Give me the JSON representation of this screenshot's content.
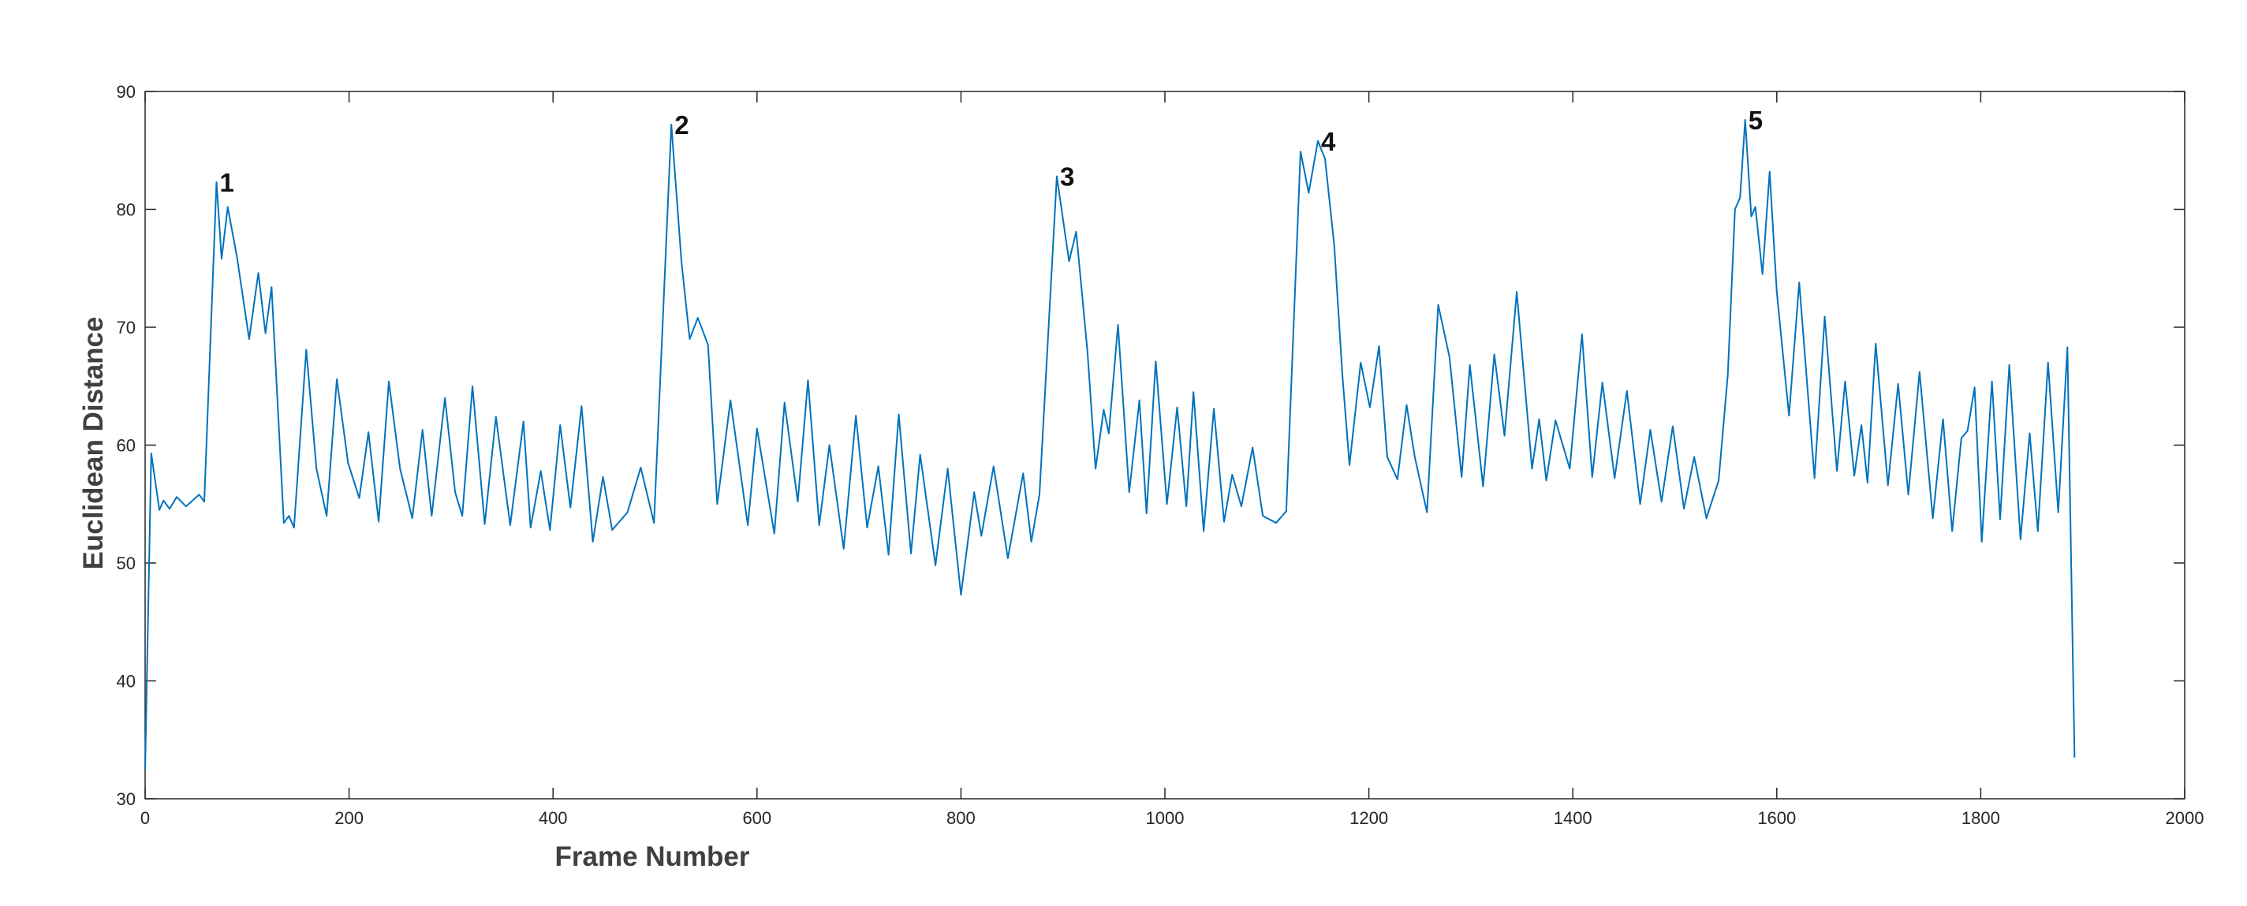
{
  "chart_data": {
    "type": "line",
    "xlabel": "Frame Number",
    "ylabel": "Euclidean Distance",
    "color": "#0072bd",
    "xlim": [
      0,
      2000
    ],
    "xticks": [
      0,
      200,
      400,
      600,
      800,
      1000,
      1200,
      1400,
      1600,
      1800,
      2000
    ],
    "ylim": [
      30,
      90
    ],
    "yticks": [
      30,
      40,
      50,
      60,
      70,
      80,
      90
    ],
    "grid": false,
    "x": [
      0,
      6,
      14,
      18,
      24,
      31,
      40,
      53,
      58,
      70,
      75,
      81,
      90,
      102,
      111,
      118,
      124,
      136,
      141,
      146,
      158,
      168,
      178,
      188,
      199,
      210,
      219,
      229,
      239,
      250,
      262,
      272,
      281,
      294,
      304,
      311,
      321,
      333,
      344,
      358,
      371,
      378,
      388,
      397,
      407,
      417,
      428,
      439,
      449,
      458,
      473,
      486,
      499,
      516,
      526,
      534,
      542,
      552,
      561,
      574,
      591,
      600,
      617,
      627,
      640,
      650,
      661,
      671,
      685,
      697,
      708,
      719,
      729,
      739,
      751,
      760,
      775,
      787,
      800,
      813,
      820,
      832,
      846,
      861,
      869,
      877,
      894,
      906,
      913,
      924,
      932,
      940,
      945,
      954,
      965,
      975,
      982,
      991,
      1002,
      1012,
      1021,
      1028,
      1038,
      1048,
      1058,
      1066,
      1075,
      1086,
      1096,
      1109,
      1119,
      1133,
      1141,
      1150,
      1157,
      1166,
      1174,
      1181,
      1192,
      1201,
      1210,
      1218,
      1228,
      1237,
      1245,
      1257,
      1268,
      1279,
      1291,
      1299,
      1312,
      1323,
      1333,
      1345,
      1360,
      1367,
      1374,
      1383,
      1397,
      1409,
      1419,
      1429,
      1441,
      1453,
      1466,
      1476,
      1487,
      1498,
      1509,
      1519,
      1531,
      1543,
      1552,
      1559,
      1564,
      1569,
      1575,
      1579,
      1586,
      1593,
      1600,
      1612,
      1622,
      1637,
      1647,
      1659,
      1667,
      1676,
      1683,
      1689,
      1697,
      1709,
      1719,
      1729,
      1740,
      1753,
      1763,
      1772,
      1781,
      1787,
      1794,
      1801,
      1811,
      1819,
      1828,
      1839,
      1848,
      1856,
      1866,
      1876,
      1885,
      1892
    ],
    "values": [
      32.5,
      59.3,
      54.5,
      55.3,
      54.6,
      55.6,
      54.8,
      55.8,
      55.2,
      82.3,
      75.8,
      80.2,
      76,
      69,
      74.6,
      69.5,
      73.4,
      53.4,
      54,
      53,
      68.1,
      58,
      54,
      65.6,
      58.5,
      55.5,
      61.1,
      53.5,
      65.4,
      58,
      53.8,
      61.3,
      54,
      64,
      56,
      54,
      65,
      53.3,
      62.4,
      53.2,
      62,
      53,
      57.8,
      52.8,
      61.7,
      54.7,
      63.3,
      51.8,
      57.3,
      52.8,
      54.3,
      58.1,
      53.4,
      87.2,
      75.5,
      69,
      70.8,
      68.5,
      55,
      63.8,
      53.2,
      61.4,
      52.5,
      63.6,
      55.2,
      65.5,
      53.2,
      60,
      51.2,
      62.5,
      53,
      58.2,
      50.7,
      62.6,
      50.8,
      59.2,
      49.8,
      58,
      47.3,
      56,
      52.3,
      58.2,
      50.4,
      57.6,
      51.8,
      55.8,
      82.8,
      75.6,
      78.1,
      68,
      58,
      63,
      61,
      70.2,
      56,
      63.8,
      54.2,
      67.1,
      55,
      63.2,
      54.8,
      64.5,
      52.7,
      63.1,
      53.5,
      57.5,
      54.8,
      59.8,
      54,
      53.4,
      54.4,
      84.9,
      81.4,
      85.8,
      84.3,
      77,
      66,
      58.3,
      67,
      63.2,
      68.4,
      59,
      57.1,
      63.4,
      59,
      54.3,
      71.9,
      67.5,
      57.3,
      66.8,
      56.5,
      67.7,
      60.8,
      73,
      58,
      62.2,
      57,
      62.1,
      58,
      69.4,
      57.3,
      65.3,
      57.2,
      64.6,
      55,
      61.3,
      55.2,
      61.6,
      54.6,
      59,
      53.8,
      57,
      66,
      80,
      81,
      87.6,
      79.4,
      80.2,
      74.5,
      83.2,
      73,
      62.5,
      73.8,
      57.2,
      70.9,
      57.8,
      65.4,
      57.4,
      61.7,
      56.8,
      68.6,
      56.6,
      65.2,
      55.8,
      66.2,
      53.8,
      62.2,
      52.7,
      60.6,
      61.2,
      64.9,
      51.8,
      65.4,
      53.7,
      66.8,
      52,
      61,
      52.7,
      67,
      54.3,
      68.3,
      33.5
    ],
    "annotations": [
      {
        "text": "1",
        "x": 70,
        "y": 82.3
      },
      {
        "text": "2",
        "x": 516,
        "y": 87.2
      },
      {
        "text": "3",
        "x": 894,
        "y": 82.8
      },
      {
        "text": "4",
        "x": 1150,
        "y": 85.8
      },
      {
        "text": "5",
        "x": 1569,
        "y": 87.6
      }
    ]
  }
}
